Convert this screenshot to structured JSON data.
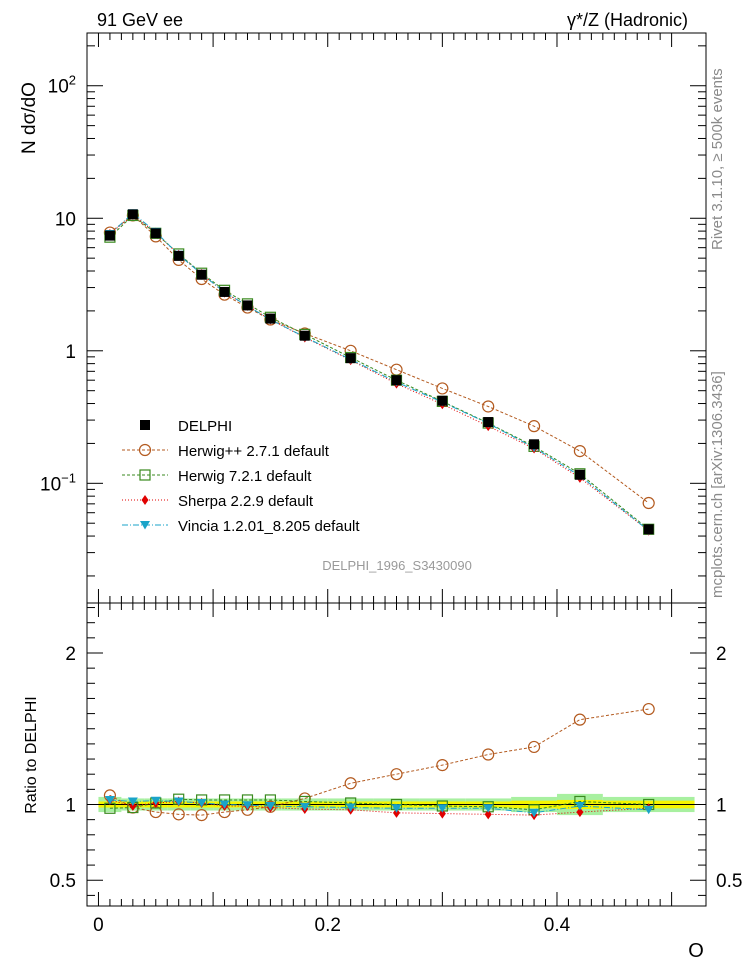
{
  "header": {
    "left": "91 GeV ee",
    "right": "γ*/Z (Hadronic)"
  },
  "side_labels": {
    "top": "Rivet 3.1.10, ≥ 500k events",
    "bottom": "mcplots.cern.ch [arXiv:1306.3436]"
  },
  "watermark": "DELPHI_1996_S3430090",
  "colors": {
    "delphi": "#000000",
    "herwigpp": "#b35a1f",
    "herwig7": "#3a8a1f",
    "sherpa": "#e00000",
    "vincia": "#1aa3c8",
    "band_inner": "#f5f500",
    "band_outer": "#a8f0a0"
  },
  "chart_data": [
    {
      "type": "line",
      "panel": "main",
      "yscale": "log",
      "ylabel": "N dσ/dO",
      "ylim": [
        0.0125,
        250
      ],
      "xlim": [
        -0.01,
        0.53
      ],
      "ytick_labels": [
        {
          "value": 0.1,
          "base": "10",
          "exp": "−1"
        },
        {
          "value": 1,
          "base": "1",
          "exp": ""
        },
        {
          "value": 10,
          "base": "10",
          "exp": ""
        },
        {
          "value": 100,
          "base": "10",
          "exp": "2"
        }
      ],
      "x": [
        0.01,
        0.03,
        0.05,
        0.07,
        0.09,
        0.11,
        0.13,
        0.15,
        0.18,
        0.22,
        0.26,
        0.3,
        0.34,
        0.38,
        0.42,
        0.48
      ],
      "legend_position": "middle-left",
      "series": [
        {
          "name": "DELPHI",
          "key": "delphi",
          "marker": "square-filled",
          "values": [
            7.4,
            10.7,
            7.7,
            5.2,
            3.75,
            2.78,
            2.2,
            1.75,
            1.3,
            0.88,
            0.6,
            0.42,
            0.29,
            0.197,
            0.116,
            0.045
          ]
        },
        {
          "name": "Herwig++ 2.7.1 default",
          "key": "herwigpp",
          "marker": "circle-open",
          "dash": "3,2",
          "values": [
            7.8,
            10.5,
            7.3,
            4.85,
            3.48,
            2.65,
            2.12,
            1.72,
            1.35,
            1.0,
            0.72,
            0.52,
            0.38,
            0.27,
            0.175,
            0.071
          ]
        },
        {
          "name": "Herwig 7.2.1 default",
          "key": "herwig7",
          "marker": "square-open",
          "dash": "3,2",
          "values": [
            7.2,
            10.5,
            7.7,
            5.38,
            3.85,
            2.86,
            2.26,
            1.79,
            1.33,
            0.89,
            0.6,
            0.415,
            0.285,
            0.19,
            0.118,
            0.045
          ]
        },
        {
          "name": "Sherpa 2.2.9 default",
          "key": "sherpa",
          "marker": "diamond-filled",
          "dash": "1,2",
          "values": [
            7.6,
            10.6,
            7.8,
            5.3,
            3.8,
            2.75,
            2.18,
            1.72,
            1.26,
            0.85,
            0.565,
            0.395,
            0.27,
            0.183,
            0.11,
            0.044
          ]
        },
        {
          "name": "Vincia 1.2.01_8.205 default",
          "key": "vincia",
          "marker": "triangle-down-filled",
          "dash": "6,2,1,2",
          "values": [
            7.6,
            10.9,
            7.9,
            5.3,
            3.8,
            2.77,
            2.18,
            1.72,
            1.27,
            0.86,
            0.58,
            0.41,
            0.283,
            0.186,
            0.114,
            0.044
          ]
        }
      ]
    },
    {
      "type": "line",
      "panel": "ratio",
      "ylabel": "Ratio to DELPHI",
      "xlabel": "O",
      "ylim": [
        0.33,
        2.33
      ],
      "xlim": [
        -0.01,
        0.53
      ],
      "yticks": [
        0.5,
        1,
        2
      ],
      "ytick_labels": [
        "0.5",
        "1",
        "2"
      ],
      "xticks": [
        0,
        0.2,
        0.4
      ],
      "xtick_labels": [
        "0",
        "0.2",
        "0.4"
      ],
      "x": [
        0.01,
        0.03,
        0.05,
        0.07,
        0.09,
        0.11,
        0.13,
        0.15,
        0.18,
        0.22,
        0.26,
        0.3,
        0.34,
        0.38,
        0.42,
        0.48
      ],
      "band_edges": [
        0.0,
        0.02,
        0.04,
        0.06,
        0.08,
        0.1,
        0.12,
        0.14,
        0.16,
        0.2,
        0.24,
        0.28,
        0.32,
        0.36,
        0.4,
        0.44,
        0.52
      ],
      "band_inner_halfwidth": [
        0.02,
        0.02,
        0.02,
        0.02,
        0.02,
        0.02,
        0.02,
        0.02,
        0.02,
        0.02,
        0.02,
        0.02,
        0.02,
        0.025,
        0.03,
        0.025
      ],
      "band_outer_halfwidth": [
        0.05,
        0.04,
        0.04,
        0.04,
        0.04,
        0.04,
        0.04,
        0.04,
        0.04,
        0.04,
        0.04,
        0.04,
        0.04,
        0.05,
        0.07,
        0.05
      ],
      "series": [
        {
          "name": "Herwig++ 2.7.1 default",
          "key": "herwigpp",
          "marker": "circle-open",
          "dash": "3,2",
          "values": [
            1.06,
            0.98,
            0.95,
            0.935,
            0.93,
            0.95,
            0.965,
            0.985,
            1.04,
            1.14,
            1.2,
            1.26,
            1.33,
            1.38,
            1.56,
            1.63
          ]
        },
        {
          "name": "Herwig 7.2.1 default",
          "key": "herwig7",
          "marker": "square-open",
          "dash": "3,2",
          "values": [
            0.975,
            0.98,
            1.01,
            1.035,
            1.03,
            1.03,
            1.03,
            1.03,
            1.02,
            1.01,
            1.0,
            0.99,
            0.985,
            0.965,
            1.02,
            1.0
          ]
        },
        {
          "name": "Sherpa 2.2.9 default",
          "key": "sherpa",
          "marker": "diamond-filled",
          "dash": "1,2",
          "values": [
            1.03,
            0.99,
            1.01,
            1.02,
            1.01,
            0.99,
            0.99,
            0.98,
            0.97,
            0.965,
            0.945,
            0.94,
            0.935,
            0.93,
            0.95,
            0.975
          ]
        },
        {
          "name": "Vincia 1.2.01_8.205 default",
          "key": "vincia",
          "marker": "triangle-down-filled",
          "dash": "6,2,1,2",
          "values": [
            1.03,
            1.02,
            1.025,
            1.02,
            1.01,
            1.0,
            0.995,
            0.99,
            0.985,
            0.98,
            0.975,
            0.975,
            0.975,
            0.945,
            0.99,
            0.965
          ]
        }
      ]
    }
  ]
}
